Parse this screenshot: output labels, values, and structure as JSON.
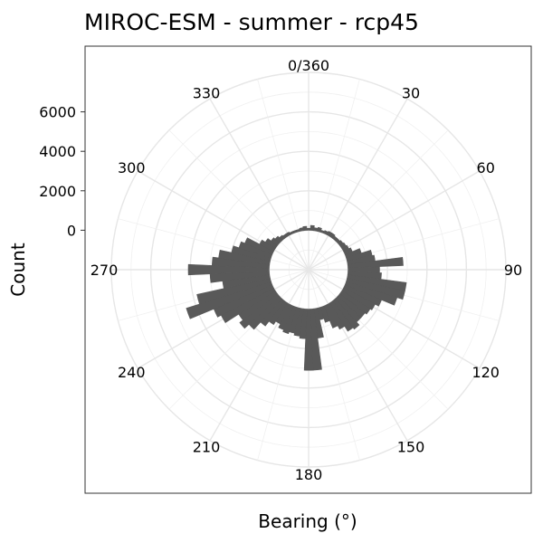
{
  "chart_data": {
    "type": "bar",
    "coordinate_system": "polar",
    "title": "MIROC-ESM - summer - rcp45",
    "xlabel": "Bearing (°)",
    "ylabel": "Count",
    "bearing_ticks": [
      "0/360",
      "30",
      "60",
      "90",
      "120",
      "150",
      "180",
      "210",
      "240",
      "270",
      "300",
      "330"
    ],
    "bearing_tick_values": [
      0,
      30,
      60,
      90,
      120,
      150,
      180,
      210,
      240,
      270,
      300,
      330
    ],
    "count_ticks": [
      "0",
      "2000",
      "4000",
      "6000"
    ],
    "count_tick_values": [
      0,
      2000,
      4000,
      6000
    ],
    "radial_range": [
      -2000,
      8000
    ],
    "bin_width": 5,
    "grid": true,
    "bar_color": "#595959",
    "bearings": [
      0,
      5,
      10,
      15,
      20,
      25,
      30,
      35,
      40,
      45,
      50,
      55,
      60,
      65,
      70,
      75,
      80,
      85,
      90,
      95,
      100,
      105,
      110,
      115,
      120,
      125,
      130,
      135,
      140,
      145,
      150,
      155,
      160,
      165,
      170,
      175,
      180,
      185,
      190,
      195,
      200,
      205,
      210,
      215,
      220,
      225,
      230,
      235,
      240,
      245,
      250,
      255,
      260,
      265,
      270,
      275,
      280,
      285,
      290,
      295,
      300,
      305,
      310,
      315,
      320,
      325,
      330,
      335,
      340,
      345,
      350,
      355
    ],
    "values": [
      100,
      250,
      150,
      200,
      100,
      150,
      200,
      200,
      150,
      150,
      200,
      250,
      300,
      400,
      800,
      1300,
      1400,
      2800,
      1600,
      1700,
      3000,
      3000,
      2700,
      2000,
      1800,
      1700,
      1600,
      1600,
      1800,
      1700,
      1400,
      1200,
      800,
      600,
      1500,
      3100,
      3100,
      1500,
      1400,
      1300,
      1400,
      1300,
      1100,
      1300,
      1600,
      2100,
      2400,
      2200,
      3000,
      3200,
      4500,
      3800,
      2400,
      3000,
      4100,
      2900,
      2600,
      2000,
      1700,
      1500,
      800,
      600,
      400,
      300,
      200,
      150,
      150,
      100,
      100,
      100,
      150,
      200
    ]
  }
}
